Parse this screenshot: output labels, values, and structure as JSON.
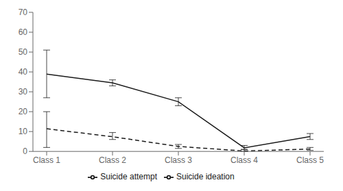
{
  "chart_data": {
    "type": "line",
    "categories": [
      "Class 1",
      "Class 2",
      "Class 3",
      "Class 4",
      "Class 5"
    ],
    "series": [
      {
        "name": "Suicide ideation",
        "color": "#1a1a1a",
        "line_style": "solid",
        "values": [
          38.9,
          34.5,
          25.0,
          1.8,
          7.5
        ],
        "err_low": [
          11.9,
          1.5,
          2.0,
          0.8,
          1.5
        ],
        "err_high": [
          12.1,
          1.5,
          2.0,
          1.2,
          1.5
        ]
      },
      {
        "name": "Suicide attempt",
        "color": "#1a1a1a",
        "line_style": "dashed",
        "values": [
          11.4,
          7.4,
          2.5,
          0.2,
          1.2
        ],
        "err_low": [
          9.4,
          1.4,
          1.0,
          0.2,
          0.7
        ],
        "err_high": [
          8.6,
          2.1,
          1.0,
          0.8,
          0.8
        ]
      }
    ],
    "ylim": [
      0,
      70
    ],
    "yticks": [
      0,
      10,
      20,
      30,
      40,
      50,
      60,
      70
    ],
    "grid": false,
    "legend": "bottom"
  }
}
